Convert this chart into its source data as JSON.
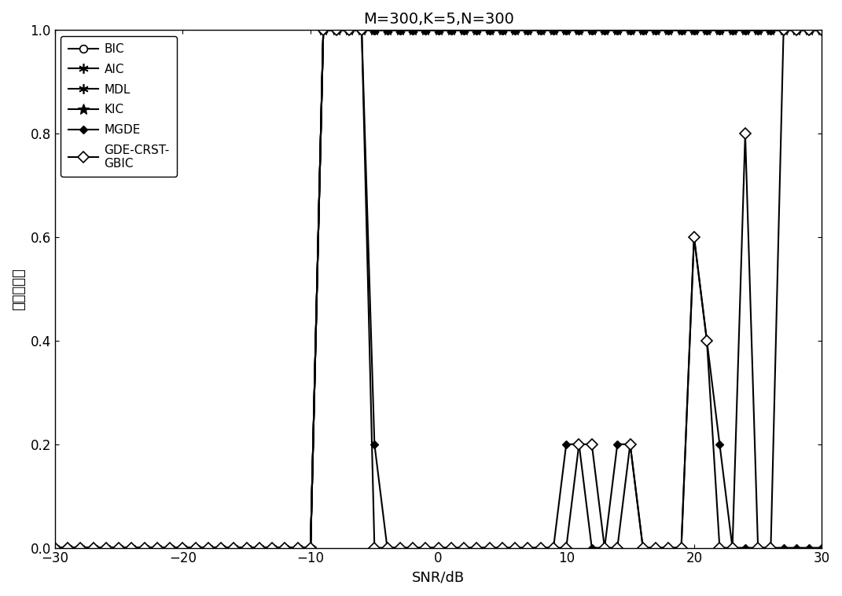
{
  "title": "M=300,K=5,N=300",
  "xlabel": "SNR/dB",
  "ylabel": "估计准确率",
  "xlim": [
    -30,
    30
  ],
  "ylim": [
    0,
    1
  ],
  "xticks": [
    -30,
    -20,
    -10,
    0,
    10,
    20,
    30
  ],
  "yticks": [
    0,
    0.2,
    0.4,
    0.6,
    0.8,
    1
  ],
  "snr": [
    -30,
    -29,
    -28,
    -27,
    -26,
    -25,
    -24,
    -23,
    -22,
    -21,
    -20,
    -19,
    -18,
    -17,
    -16,
    -15,
    -14,
    -13,
    -12,
    -11,
    -10,
    -9,
    -8,
    -7,
    -6,
    -5,
    -4,
    -3,
    -2,
    -1,
    0,
    1,
    2,
    3,
    4,
    5,
    6,
    7,
    8,
    9,
    10,
    11,
    12,
    13,
    14,
    15,
    16,
    17,
    18,
    19,
    20,
    21,
    22,
    23,
    24,
    25,
    26,
    27,
    28,
    29,
    30
  ],
  "BIC": [
    0,
    0,
    0,
    0,
    0,
    0,
    0,
    0,
    0,
    0,
    0,
    0,
    0,
    0,
    0,
    0,
    0,
    0,
    0,
    0,
    0,
    1,
    1,
    1,
    1,
    1,
    1,
    1,
    1,
    1,
    1,
    1,
    1,
    1,
    1,
    1,
    1,
    1,
    1,
    1,
    1,
    1,
    1,
    1,
    1,
    1,
    1,
    1,
    1,
    1,
    1,
    1,
    1,
    1,
    1,
    1,
    1,
    1,
    1,
    1,
    1
  ],
  "AIC": [
    0,
    0,
    0,
    0,
    0,
    0,
    0,
    0,
    0,
    0,
    0,
    0,
    0,
    0,
    0,
    0,
    0,
    0,
    0,
    0,
    0,
    1,
    1,
    1,
    1,
    1,
    1,
    1,
    1,
    1,
    1,
    1,
    1,
    1,
    1,
    1,
    1,
    1,
    1,
    1,
    1,
    1,
    1,
    1,
    1,
    1,
    1,
    1,
    1,
    1,
    1,
    1,
    1,
    1,
    1,
    1,
    1,
    1,
    1,
    1,
    1
  ],
  "MDL": [
    0,
    0,
    0,
    0,
    0,
    0,
    0,
    0,
    0,
    0,
    0,
    0,
    0,
    0,
    0,
    0,
    0,
    0,
    0,
    0,
    0,
    1,
    1,
    1,
    1,
    1,
    1,
    1,
    1,
    1,
    1,
    1,
    1,
    1,
    1,
    1,
    1,
    1,
    1,
    1,
    1,
    1,
    1,
    1,
    1,
    1,
    1,
    1,
    1,
    1,
    1,
    1,
    1,
    1,
    1,
    1,
    1,
    1,
    1,
    1,
    1
  ],
  "KIC": [
    0,
    0,
    0,
    0,
    0,
    0,
    0,
    0,
    0,
    0,
    0,
    0,
    0,
    0,
    0,
    0,
    0,
    0,
    0,
    0,
    0,
    1,
    1,
    1,
    1,
    1,
    1,
    1,
    1,
    1,
    1,
    1,
    1,
    1,
    1,
    1,
    1,
    1,
    1,
    1,
    1,
    1,
    1,
    1,
    1,
    1,
    1,
    1,
    1,
    1,
    1,
    1,
    1,
    1,
    1,
    1,
    1,
    1,
    1,
    1,
    1
  ],
  "MGDE": [
    0,
    0,
    0,
    0,
    0,
    0,
    0,
    0,
    0,
    0,
    0,
    0,
    0,
    0,
    0,
    0,
    0,
    0,
    0,
    0,
    0,
    1,
    1,
    1,
    1,
    0.2,
    0,
    0,
    0,
    0,
    0,
    0,
    0,
    0,
    0,
    0,
    0,
    0,
    0,
    0,
    0.2,
    0.2,
    0,
    0,
    0.2,
    0.2,
    0,
    0,
    0,
    0,
    0.6,
    0.4,
    0.2,
    0,
    0,
    0,
    0,
    0,
    0,
    0,
    0
  ],
  "GDE_CRST_GBIC": [
    0,
    0,
    0,
    0,
    0,
    0,
    0,
    0,
    0,
    0,
    0,
    0,
    0,
    0,
    0,
    0,
    0,
    0,
    0,
    0,
    0,
    1,
    1,
    1,
    1,
    0,
    0,
    0,
    0,
    0,
    0,
    0,
    0,
    0,
    0,
    0,
    0,
    0,
    0,
    0,
    0,
    0.2,
    0.2,
    0,
    0,
    0.2,
    0,
    0,
    0,
    0,
    0.6,
    0.4,
    0,
    0,
    0.8,
    0,
    0,
    1,
    1,
    1,
    1
  ],
  "line_color": "#000000",
  "line_width": 1.5,
  "marker_size": 7,
  "figsize": [
    10.71,
    7.59
  ],
  "dpi": 100
}
